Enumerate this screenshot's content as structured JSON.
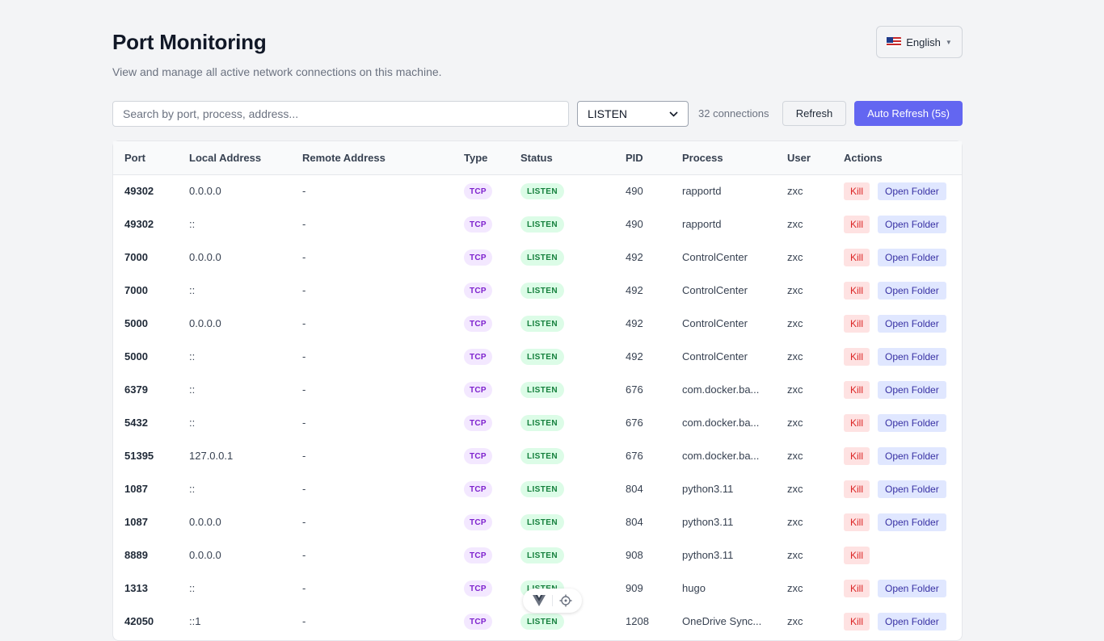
{
  "header": {
    "title": "Port Monitoring",
    "subtitle": "View and manage all active network connections on this machine.",
    "language": "English"
  },
  "toolbar": {
    "search_placeholder": "Search by port, process, address...",
    "status_filter": "LISTEN",
    "connection_count": "32 connections",
    "refresh_label": "Refresh",
    "auto_refresh_label": "Auto Refresh (5s)"
  },
  "table": {
    "columns": {
      "port": "Port",
      "local_address": "Local Address",
      "remote_address": "Remote Address",
      "type": "Type",
      "status": "Status",
      "pid": "PID",
      "process": "Process",
      "user": "User",
      "actions": "Actions"
    },
    "kill_label": "Kill",
    "folder_label": "Open Folder",
    "rows": [
      {
        "port": "49302",
        "local": "0.0.0.0",
        "remote": "-",
        "type": "TCP",
        "status": "LISTEN",
        "pid": "490",
        "process": "rapportd",
        "user": "zxc",
        "folder": true
      },
      {
        "port": "49302",
        "local": "::",
        "remote": "-",
        "type": "TCP",
        "status": "LISTEN",
        "pid": "490",
        "process": "rapportd",
        "user": "zxc",
        "folder": true
      },
      {
        "port": "7000",
        "local": "0.0.0.0",
        "remote": "-",
        "type": "TCP",
        "status": "LISTEN",
        "pid": "492",
        "process": "ControlCenter",
        "user": "zxc",
        "folder": true
      },
      {
        "port": "7000",
        "local": "::",
        "remote": "-",
        "type": "TCP",
        "status": "LISTEN",
        "pid": "492",
        "process": "ControlCenter",
        "user": "zxc",
        "folder": true
      },
      {
        "port": "5000",
        "local": "0.0.0.0",
        "remote": "-",
        "type": "TCP",
        "status": "LISTEN",
        "pid": "492",
        "process": "ControlCenter",
        "user": "zxc",
        "folder": true
      },
      {
        "port": "5000",
        "local": "::",
        "remote": "-",
        "type": "TCP",
        "status": "LISTEN",
        "pid": "492",
        "process": "ControlCenter",
        "user": "zxc",
        "folder": true
      },
      {
        "port": "6379",
        "local": "::",
        "remote": "-",
        "type": "TCP",
        "status": "LISTEN",
        "pid": "676",
        "process": "com.docker.ba...",
        "user": "zxc",
        "folder": true
      },
      {
        "port": "5432",
        "local": "::",
        "remote": "-",
        "type": "TCP",
        "status": "LISTEN",
        "pid": "676",
        "process": "com.docker.ba...",
        "user": "zxc",
        "folder": true
      },
      {
        "port": "51395",
        "local": "127.0.0.1",
        "remote": "-",
        "type": "TCP",
        "status": "LISTEN",
        "pid": "676",
        "process": "com.docker.ba...",
        "user": "zxc",
        "folder": true
      },
      {
        "port": "1087",
        "local": "::",
        "remote": "-",
        "type": "TCP",
        "status": "LISTEN",
        "pid": "804",
        "process": "python3.11",
        "user": "zxc",
        "folder": true
      },
      {
        "port": "1087",
        "local": "0.0.0.0",
        "remote": "-",
        "type": "TCP",
        "status": "LISTEN",
        "pid": "804",
        "process": "python3.11",
        "user": "zxc",
        "folder": true
      },
      {
        "port": "8889",
        "local": "0.0.0.0",
        "remote": "-",
        "type": "TCP",
        "status": "LISTEN",
        "pid": "908",
        "process": "python3.11",
        "user": "zxc",
        "folder": false
      },
      {
        "port": "1313",
        "local": "::",
        "remote": "-",
        "type": "TCP",
        "status": "LISTEN",
        "pid": "909",
        "process": "hugo",
        "user": "zxc",
        "folder": true
      },
      {
        "port": "42050",
        "local": "::1",
        "remote": "-",
        "type": "TCP",
        "status": "LISTEN",
        "pid": "1208",
        "process": "OneDrive Sync...",
        "user": "zxc",
        "folder": true
      }
    ]
  },
  "float_toolbar": {
    "icons": [
      "vue-logo-icon",
      "crosshair-icon"
    ]
  },
  "colors": {
    "accent": "#6366f1",
    "type_badge_bg": "#f3e8ff",
    "status_badge_bg": "#dcfce7",
    "kill_bg": "#fee2e2",
    "folder_bg": "#e0e7ff"
  }
}
